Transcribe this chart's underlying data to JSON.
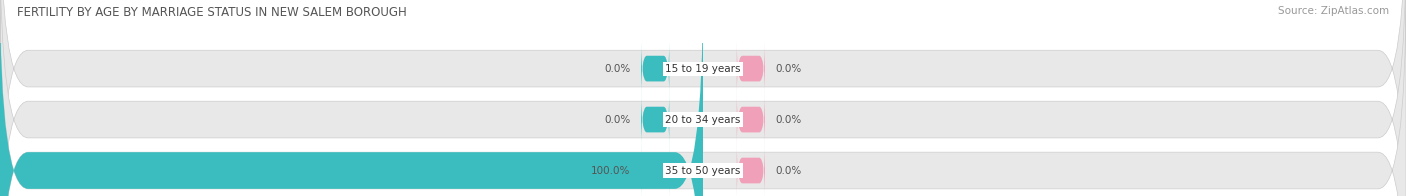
{
  "title": "FERTILITY BY AGE BY MARRIAGE STATUS IN NEW SALEM BOROUGH",
  "source": "Source: ZipAtlas.com",
  "age_groups": [
    "15 to 19 years",
    "20 to 34 years",
    "35 to 50 years"
  ],
  "married_values": [
    0.0,
    0.0,
    100.0
  ],
  "unmarried_values": [
    0.0,
    0.0,
    0.0
  ],
  "married_color": "#3bbcbe",
  "unmarried_color": "#f0a0b8",
  "bar_bg_color": "#e8e8e8",
  "bar_bg_color2": "#f2f2f2",
  "title_fontsize": 8.5,
  "source_fontsize": 7.5,
  "label_fontsize": 7.5,
  "value_fontsize": 7.5,
  "tick_fontsize": 7.5,
  "legend_fontsize": 8,
  "figsize": [
    14.06,
    1.96
  ],
  "dpi": 100
}
